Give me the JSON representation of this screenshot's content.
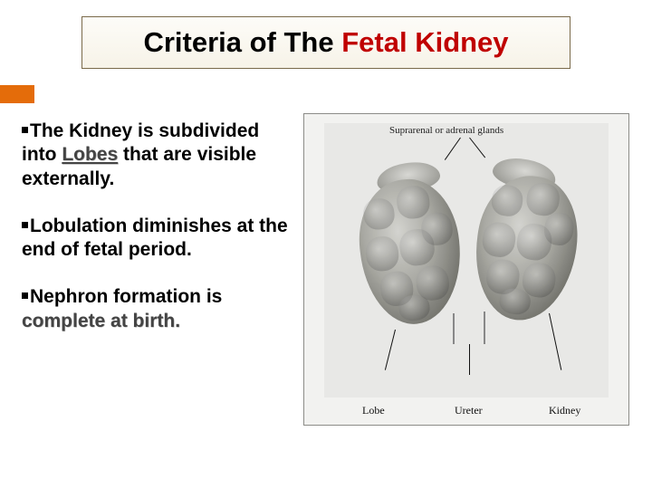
{
  "accent_color": "#e46c0a",
  "title": {
    "pre": "Criteria of The ",
    "mid_red1": "Fetal",
    "space": " ",
    "mid_red2": "Kidney"
  },
  "bullets": [
    {
      "runs": [
        {
          "t": "The Kidney is subdivided into ",
          "cls": ""
        },
        {
          "t": "Lobes",
          "cls": "emph-underline"
        },
        {
          "t": " that are visible externally.",
          "cls": ""
        }
      ]
    },
    {
      "runs": [
        {
          "t": "Lobulation diminishes at the end of  fetal period.",
          "cls": ""
        }
      ]
    },
    {
      "runs": [
        {
          "t": "Nephron formation is ",
          "cls": ""
        },
        {
          "t": "complete at birth.",
          "cls": "emph-shadow"
        }
      ]
    }
  ],
  "figure": {
    "top_label": "Suprarenal or adrenal glands",
    "bottom_labels": {
      "lobe": "Lobe",
      "ureter": "Ureter",
      "kidney": "Kidney"
    },
    "colors": {
      "panel_bg": "#f2f2f0",
      "inner_bg": "#e8e8e6",
      "border": "#8c8c88"
    }
  }
}
